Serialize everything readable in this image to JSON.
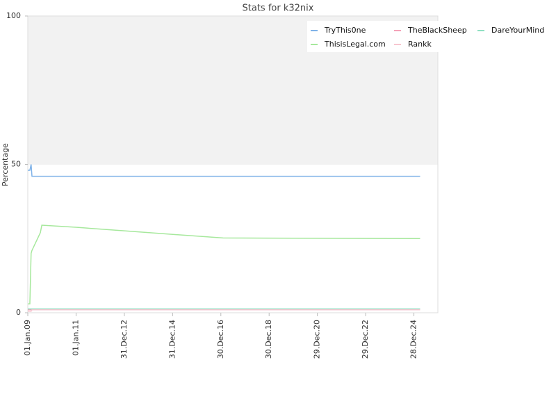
{
  "chart_data": {
    "type": "line",
    "title": "Stats for k32nix",
    "y_label": "Percentage",
    "x": [
      "2009-01-01",
      "2009-02-01",
      "2009-02-20",
      "2009-03-05",
      "2009-07-10",
      "2009-08-01",
      "2011-01-01",
      "2013-01-01",
      "2015-01-01",
      "2017-02-01",
      "2025-04-01"
    ],
    "xlim": [
      "2009-01-01",
      "2025-12-25"
    ],
    "xticks": [
      {
        "value": "2009-01-01",
        "label": "01.Jan.09"
      },
      {
        "value": "2011-01-01",
        "label": "01.Jan.11"
      },
      {
        "value": "2012-12-31",
        "label": "31.Dec.12"
      },
      {
        "value": "2014-12-31",
        "label": "31.Dec.14"
      },
      {
        "value": "2016-12-30",
        "label": "30.Dec.16"
      },
      {
        "value": "2018-12-30",
        "label": "30.Dec.18"
      },
      {
        "value": "2020-12-29",
        "label": "29.Dec.20"
      },
      {
        "value": "2022-12-29",
        "label": "29.Dec.22"
      },
      {
        "value": "2024-12-28",
        "label": "28.Dec.24"
      }
    ],
    "ylim": [
      0,
      100
    ],
    "yticks": [
      0,
      50,
      100
    ],
    "legend": "top-right",
    "series": [
      {
        "name": "TryThis0ne",
        "color": "#7fb2e8",
        "values": [
          48,
          48,
          50,
          46,
          46,
          46,
          46,
          46,
          46,
          46,
          46
        ]
      },
      {
        "name": "TheBlackSheep",
        "color": "#f4a3b8",
        "values": [
          1,
          1,
          1,
          1,
          1,
          1,
          1,
          1,
          1,
          1,
          1
        ]
      },
      {
        "name": "DareYourMind",
        "color": "#8fe0c2",
        "values": [
          1.3,
          1.3,
          1.3,
          1.3,
          1.3,
          1.3,
          1.3,
          1.3,
          1.3,
          1.3,
          1.3
        ]
      },
      {
        "name": "ThisisLegal.com",
        "color": "#a6e89c",
        "values": [
          3,
          3,
          20,
          21,
          27,
          29.5,
          28.8,
          27.6,
          26.4,
          25.2,
          25
        ]
      },
      {
        "name": "Rankk",
        "color": "#f7c6d0",
        "values": [
          0.5,
          0.5,
          0.5,
          1,
          1,
          1,
          1,
          1,
          1,
          1,
          1
        ]
      }
    ]
  }
}
